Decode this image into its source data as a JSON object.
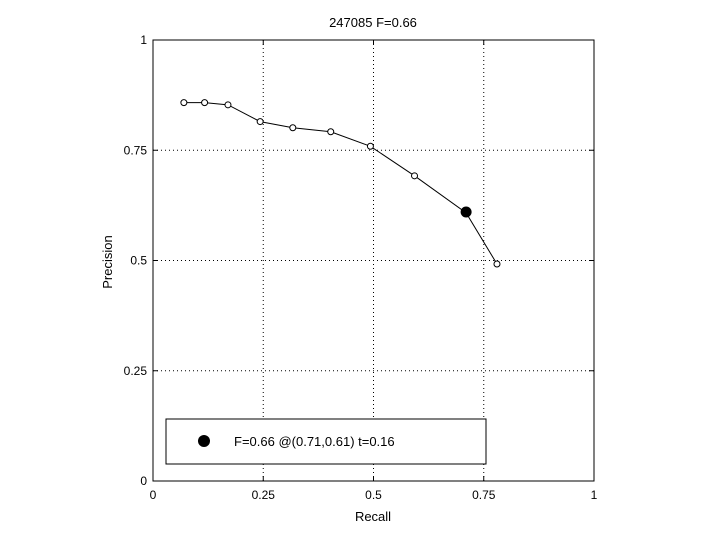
{
  "chart_data": {
    "type": "line",
    "title": "247085 F=0.66",
    "xlabel": "Recall",
    "ylabel": "Precision",
    "xlim": [
      0,
      1
    ],
    "ylim": [
      0,
      1
    ],
    "grid": true,
    "xticks": [
      0,
      0.25,
      0.5,
      0.75,
      1
    ],
    "yticks": [
      0,
      0.25,
      0.5,
      0.75,
      1
    ],
    "xtick_labels": [
      "0",
      "0.25",
      "0.5",
      "0.75",
      "1"
    ],
    "ytick_labels": [
      "0",
      "0.25",
      "0.5",
      "0.75",
      "1"
    ],
    "series": [
      {
        "x": [
          0.07,
          0.117,
          0.17,
          0.243,
          0.317,
          0.403,
          0.493,
          0.593,
          0.71,
          0.78
        ],
        "y": [
          0.858,
          0.858,
          0.853,
          0.815,
          0.801,
          0.792,
          0.759,
          0.692,
          0.608,
          0.492
        ],
        "marker": "open-circle",
        "color": "#000000"
      }
    ],
    "highlight_point": {
      "x": 0.71,
      "y": 0.61,
      "marker": "filled-circle",
      "color": "#000000"
    },
    "legend": {
      "placement": "bottom",
      "entries": [
        {
          "label": "F=0.66 @(0.71,0.61) t=0.16",
          "marker": "filled-circle"
        }
      ]
    }
  }
}
